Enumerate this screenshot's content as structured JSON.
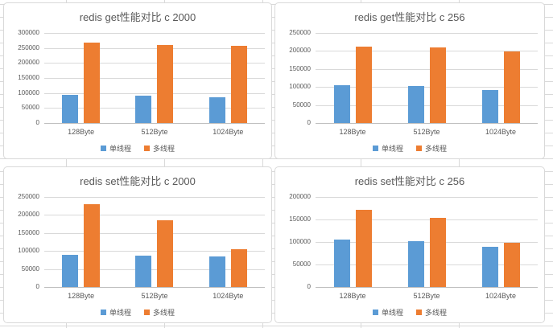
{
  "colors": {
    "single_thread": "#5B9BD5",
    "multi_thread": "#ED7D31",
    "gridline": "#d9d9d9",
    "axis_line": "#bfbfbf",
    "title_text": "#595959",
    "axis_text": "#595959",
    "chart_border": "#d9d9d9",
    "sheet_gridline": "#d9d9d9"
  },
  "legend": {
    "single_thread_label": "单线程",
    "multi_thread_label": "多线程"
  },
  "chart_data": [
    {
      "type": "bar",
      "title": "redis get性能对比 c 2000",
      "categories": [
        "128Byte",
        "512Byte",
        "1024Byte"
      ],
      "series": [
        {
          "key": "single-thread",
          "name": "单线程",
          "color": "#5B9BD5",
          "values": [
            95000,
            90000,
            87000
          ]
        },
        {
          "key": "multi-thread",
          "name": "多线程",
          "color": "#ED7D31",
          "values": [
            268000,
            261000,
            258000
          ]
        }
      ],
      "ylim": [
        0,
        300000
      ],
      "ytick_step": 50000,
      "yticks": [
        300000,
        250000,
        200000,
        150000,
        100000,
        50000,
        0
      ],
      "grid": true,
      "legend_position": "bottom"
    },
    {
      "type": "bar",
      "title": "redis get性能对比 c 256",
      "categories": [
        "128Byte",
        "512Byte",
        "1024Byte"
      ],
      "series": [
        {
          "key": "single-thread",
          "name": "单线程",
          "color": "#5B9BD5",
          "values": [
            105000,
            102000,
            91000
          ]
        },
        {
          "key": "multi-thread",
          "name": "多线程",
          "color": "#ED7D31",
          "values": [
            211000,
            209000,
            199000
          ]
        }
      ],
      "ylim": [
        0,
        250000
      ],
      "ytick_step": 50000,
      "yticks": [
        250000,
        200000,
        150000,
        100000,
        50000,
        0
      ],
      "grid": true,
      "legend_position": "bottom"
    },
    {
      "type": "bar",
      "title": "redis set性能对比 c 2000",
      "categories": [
        "128Byte",
        "512Byte",
        "1024Byte"
      ],
      "series": [
        {
          "key": "single-thread",
          "name": "单线程",
          "color": "#5B9BD5",
          "values": [
            90000,
            86000,
            84000
          ]
        },
        {
          "key": "multi-thread",
          "name": "多线程",
          "color": "#ED7D31",
          "values": [
            231000,
            185000,
            105000
          ]
        }
      ],
      "ylim": [
        0,
        250000
      ],
      "ytick_step": 50000,
      "yticks": [
        250000,
        200000,
        150000,
        100000,
        50000,
        0
      ],
      "grid": true,
      "legend_position": "bottom"
    },
    {
      "type": "bar",
      "title": "redis set性能对比 c 256",
      "categories": [
        "128Byte",
        "512Byte",
        "1024Byte"
      ],
      "series": [
        {
          "key": "single-thread",
          "name": "单线程",
          "color": "#5B9BD5",
          "values": [
            105000,
            102000,
            90000
          ]
        },
        {
          "key": "multi-thread",
          "name": "多线程",
          "color": "#ED7D31",
          "values": [
            171000,
            153000,
            99000
          ]
        }
      ],
      "ylim": [
        0,
        200000
      ],
      "ytick_step": 50000,
      "yticks": [
        200000,
        150000,
        100000,
        50000,
        0
      ],
      "grid": true,
      "legend_position": "bottom"
    }
  ]
}
